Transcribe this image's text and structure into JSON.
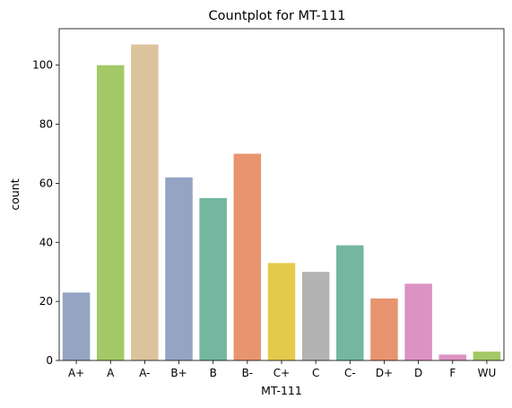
{
  "chart_data": {
    "type": "bar",
    "title": "Countplot for MT-111",
    "xlabel": "MT-111",
    "ylabel": "count",
    "categories": [
      "A+",
      "A",
      "A-",
      "B+",
      "B",
      "B-",
      "C+",
      "C",
      "C-",
      "D+",
      "D",
      "F",
      "WU"
    ],
    "values": [
      23,
      100,
      107,
      62,
      55,
      70,
      33,
      30,
      39,
      21,
      26,
      2,
      3
    ],
    "colors": [
      "#95a4c3",
      "#a3c966",
      "#ddc39c",
      "#95a4c3",
      "#74b7a1",
      "#e8956f",
      "#e3ca4b",
      "#b3b3b3",
      "#74b7a1",
      "#e8956f",
      "#dc93c3",
      "#dc93c3",
      "#a3c966"
    ],
    "ylim": [
      0,
      112.35
    ],
    "yticks": [
      0,
      20,
      40,
      60,
      80,
      100
    ],
    "grid": false,
    "legend": false
  }
}
